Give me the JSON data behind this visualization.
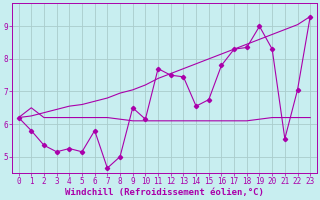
{
  "background_color": "#c8eef0",
  "grid_color": "#aacccc",
  "line_color": "#aa00aa",
  "xlabel": "Windchill (Refroidissement éolien,°C)",
  "xlim": [
    -0.5,
    23.5
  ],
  "ylim": [
    4.5,
    9.7
  ],
  "yticks": [
    5,
    6,
    7,
    8,
    9
  ],
  "xticks": [
    0,
    1,
    2,
    3,
    4,
    5,
    6,
    7,
    8,
    9,
    10,
    11,
    12,
    13,
    14,
    15,
    16,
    17,
    18,
    19,
    20,
    21,
    22,
    23
  ],
  "line_flat_x": [
    0,
    1,
    2,
    3,
    4,
    5,
    6,
    7,
    8,
    9,
    10,
    11,
    12,
    13,
    14,
    15,
    16,
    17,
    18,
    19,
    20,
    21,
    22,
    23
  ],
  "line_flat_y": [
    6.2,
    6.5,
    6.2,
    6.2,
    6.2,
    6.2,
    6.2,
    6.2,
    6.15,
    6.1,
    6.1,
    6.1,
    6.1,
    6.1,
    6.1,
    6.1,
    6.1,
    6.1,
    6.1,
    6.15,
    6.2,
    6.2,
    6.2,
    6.2
  ],
  "line_diag_x": [
    0,
    1,
    2,
    3,
    4,
    5,
    6,
    7,
    8,
    9,
    10,
    11,
    12,
    13,
    14,
    15,
    16,
    17,
    18,
    19,
    20,
    21,
    22,
    23
  ],
  "line_diag_y": [
    6.2,
    6.25,
    6.35,
    6.45,
    6.55,
    6.6,
    6.7,
    6.8,
    6.95,
    7.05,
    7.2,
    7.4,
    7.55,
    7.7,
    7.85,
    8.0,
    8.15,
    8.3,
    8.45,
    8.6,
    8.75,
    8.9,
    9.05,
    9.3
  ],
  "line_jagged_x": [
    0,
    1,
    2,
    3,
    4,
    5,
    6,
    7,
    8,
    9,
    10,
    11,
    12,
    13,
    14,
    15,
    16,
    17,
    18,
    19,
    20,
    21,
    22,
    23
  ],
  "line_jagged_y": [
    6.2,
    5.8,
    5.35,
    5.15,
    5.25,
    5.15,
    5.8,
    4.65,
    5.0,
    6.5,
    6.15,
    7.7,
    7.5,
    7.45,
    6.55,
    6.75,
    7.8,
    8.3,
    8.35,
    9.0,
    8.3,
    5.55,
    7.05,
    9.3
  ],
  "title_fontsize": 7,
  "xlabel_fontsize": 6.5,
  "tick_fontsize": 5.5
}
